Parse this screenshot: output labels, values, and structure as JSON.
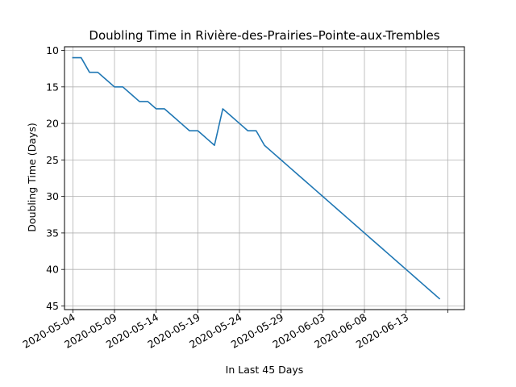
{
  "chart_data": {
    "type": "line",
    "title": "Doubling Time in  Rivière-des-Prairies–Pointe-aux-Trembles",
    "xlabel": "In Last 45 Days",
    "ylabel": "Doubling Time (Days)",
    "y_inverted": true,
    "ylim": [
      45.5,
      9.5
    ],
    "xlim": [
      "2020-05-03",
      "2020-06-20"
    ],
    "grid": true,
    "x_ticks": [
      "2020-05-04",
      "2020-05-09",
      "2020-05-14",
      "2020-05-19",
      "2020-05-24",
      "2020-05-29",
      "2020-06-03",
      "2020-06-08",
      "2020-06-13",
      "2020-06-18"
    ],
    "x_tick_labels": [
      "2020-05-04",
      "2020-05-09",
      "2020-05-14",
      "2020-05-19",
      "2020-05-24",
      "2020-05-29",
      "2020-06-03",
      "2020-06-08",
      "2020-06-13",
      ""
    ],
    "y_ticks": [
      10,
      15,
      20,
      25,
      30,
      35,
      40,
      45
    ],
    "series": [
      {
        "color": "#1f77b4",
        "x": [
          "2020-05-04",
          "2020-05-05",
          "2020-05-06",
          "2020-05-07",
          "2020-05-08",
          "2020-05-09",
          "2020-05-10",
          "2020-05-11",
          "2020-05-12",
          "2020-05-13",
          "2020-05-14",
          "2020-05-15",
          "2020-05-16",
          "2020-05-17",
          "2020-05-18",
          "2020-05-19",
          "2020-05-20",
          "2020-05-21",
          "2020-05-22",
          "2020-05-23",
          "2020-05-24",
          "2020-05-25",
          "2020-05-26",
          "2020-05-27",
          "2020-05-28",
          "2020-05-29",
          "2020-05-30",
          "2020-05-31",
          "2020-06-01",
          "2020-06-02",
          "2020-06-03",
          "2020-06-04",
          "2020-06-05",
          "2020-06-06",
          "2020-06-07",
          "2020-06-08",
          "2020-06-09",
          "2020-06-10",
          "2020-06-11",
          "2020-06-12",
          "2020-06-13",
          "2020-06-14",
          "2020-06-15",
          "2020-06-16",
          "2020-06-17"
        ],
        "y": [
          11,
          11,
          13,
          13,
          14,
          15,
          15,
          16,
          17,
          17,
          18,
          18,
          19,
          20,
          21,
          21,
          22,
          23,
          18,
          19,
          20,
          21,
          21,
          23,
          24,
          25,
          26,
          27,
          28,
          29,
          30,
          31,
          32,
          33,
          34,
          35,
          36,
          37,
          38,
          39,
          40,
          41,
          42,
          43,
          44
        ]
      }
    ]
  }
}
